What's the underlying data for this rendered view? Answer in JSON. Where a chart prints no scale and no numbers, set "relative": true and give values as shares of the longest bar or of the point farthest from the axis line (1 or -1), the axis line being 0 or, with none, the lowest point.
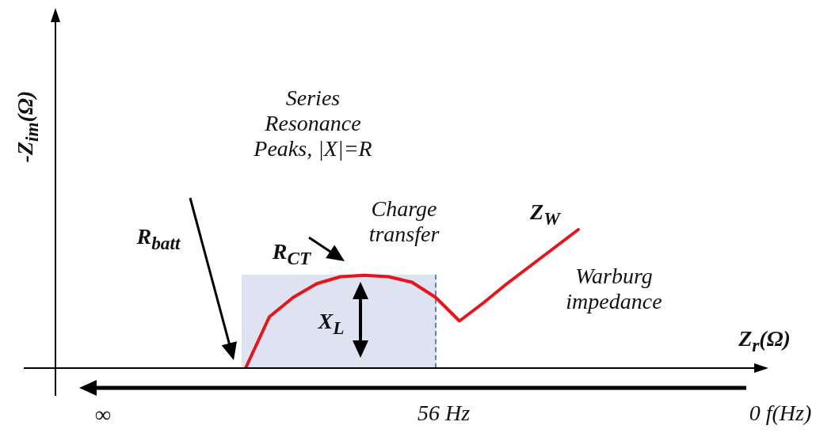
{
  "chart_data": {
    "type": "line",
    "relative": true,
    "xlabel": "Z$_{r}$(Ω)",
    "ylabel": "-Z$_{im}$(Ω)",
    "categories": [
      null,
      null,
      null,
      null,
      null,
      null,
      null,
      null,
      null,
      null,
      null,
      null,
      null,
      null,
      null,
      null,
      null,
      null,
      null,
      null,
      null,
      null,
      null,
      null,
      null,
      null,
      null,
      null,
      null,
      null,
      null
    ],
    "series": [
      {
        "color": "#e8131b",
        "values": [
          null,
          null,
          null,
          null,
          null,
          null,
          null,
          null,
          0,
          0.37,
          0.51,
          0.61,
          0.66,
          0.67,
          0.66,
          0.62,
          0.51,
          0.34,
          0.47,
          0.61,
          0.74,
          0.87,
          1,
          null,
          null,
          null,
          null,
          null,
          null,
          null,
          null
        ]
      }
    ],
    "annotations": [
      "Series Resonance Peaks, |X|=R",
      "Charge transfer",
      "Warburg impedance",
      "R$_{batt}$",
      "R$_{CT}$",
      "X$_{L}$",
      "Z$_{W}$",
      "∞",
      "56 Hz",
      "0 f(Hz)"
    ],
    "legend": false
  }
}
